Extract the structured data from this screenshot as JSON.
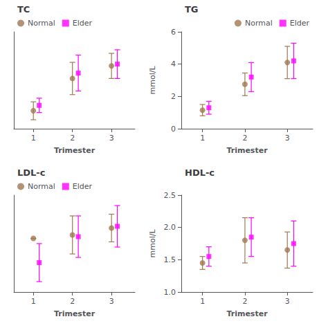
{
  "chart_data": [
    {
      "type": "scatter",
      "title": "TC",
      "xlabel": "Trimester",
      "xlim": [
        0.5,
        3.6
      ],
      "xticks": [
        1,
        2,
        3
      ],
      "ylim": [
        2.8,
        5.5
      ],
      "tick_labels": "x",
      "legend": "upper left",
      "series": [
        {
          "name": "Normal",
          "color": "#A07850",
          "marker": "circle",
          "x": [
            1.0,
            2.0,
            3.0
          ],
          "values": [
            3.3,
            4.2,
            4.55
          ],
          "error_lo": [
            0.25,
            0.45,
            0.35
          ],
          "error_hi": [
            0.25,
            0.45,
            0.35
          ]
        },
        {
          "name": "Elder",
          "color": "#FF00FF",
          "marker": "square",
          "x": [
            1.15,
            2.15,
            3.15
          ],
          "values": [
            3.45,
            4.35,
            4.6
          ],
          "error_lo": [
            0.2,
            0.5,
            0.4
          ],
          "error_hi": [
            0.2,
            0.5,
            0.4
          ]
        }
      ]
    },
    {
      "type": "scatter",
      "title": "TG",
      "xlabel": "Trimester",
      "ylabel": "mmol/L",
      "xlim": [
        0.5,
        3.6
      ],
      "xticks": [
        1,
        2,
        3
      ],
      "ylim": [
        0,
        6
      ],
      "yticks": [
        0,
        2,
        4,
        6
      ],
      "legend": "upper right",
      "series": [
        {
          "name": "Normal",
          "color": "#A07850",
          "marker": "circle",
          "x": [
            1.0,
            2.0,
            3.0
          ],
          "values": [
            1.15,
            2.75,
            4.1
          ],
          "error_lo": [
            0.35,
            0.7,
            1.0
          ],
          "error_hi": [
            0.35,
            0.7,
            1.0
          ]
        },
        {
          "name": "Elder",
          "color": "#FF00FF",
          "marker": "square",
          "x": [
            1.15,
            2.15,
            3.15
          ],
          "values": [
            1.3,
            3.2,
            4.2
          ],
          "error_lo": [
            0.4,
            0.9,
            1.1
          ],
          "error_hi": [
            0.4,
            0.9,
            1.1
          ]
        }
      ]
    },
    {
      "type": "scatter",
      "title": "LDL-c",
      "xlabel": "Trimester",
      "xlim": [
        0.5,
        3.6
      ],
      "xticks": [
        1,
        2,
        3
      ],
      "ylim": [
        1.0,
        3.8
      ],
      "tick_labels": "x",
      "legend": "upper left",
      "series": [
        {
          "name": "Normal",
          "color": "#A07850",
          "marker": "circle",
          "x": [
            1.0,
            2.0,
            3.0
          ],
          "values": [
            2.55,
            2.65,
            2.85
          ],
          "error_lo": [
            0.0,
            0.55,
            0.4
          ],
          "error_hi": [
            0.0,
            0.55,
            0.4
          ]
        },
        {
          "name": "Elder",
          "color": "#FF00FF",
          "marker": "square",
          "x": [
            1.15,
            2.15,
            3.15
          ],
          "values": [
            1.85,
            2.6,
            2.9
          ],
          "error_lo": [
            0.55,
            0.6,
            0.6
          ],
          "error_hi": [
            0.55,
            0.6,
            0.6
          ]
        }
      ]
    },
    {
      "type": "scatter",
      "title": "HDL-c",
      "xlabel": "Trimester",
      "ylabel": "mmol/L",
      "xlim": [
        0.5,
        3.6
      ],
      "xticks": [
        1,
        2,
        3
      ],
      "ylim": [
        1.0,
        2.5
      ],
      "yticks": [
        {
          "value": 1.0,
          "label": "1.0"
        },
        1.5,
        {
          "value": 2.0,
          "label": "2.0"
        },
        2.5
      ],
      "series": [
        {
          "name": "Normal",
          "color": "#A07850",
          "marker": "circle",
          "x": [
            1.0,
            2.0,
            3.0
          ],
          "values": [
            1.45,
            1.8,
            1.65
          ],
          "error_lo": [
            0.1,
            0.35,
            0.28
          ],
          "error_hi": [
            0.1,
            0.35,
            0.28
          ]
        },
        {
          "name": "Elder",
          "color": "#FF00FF",
          "marker": "square",
          "x": [
            1.15,
            2.15,
            3.15
          ],
          "values": [
            1.55,
            1.85,
            1.75
          ],
          "error_lo": [
            0.15,
            0.3,
            0.35
          ],
          "error_hi": [
            0.15,
            0.3,
            0.35
          ]
        }
      ]
    }
  ]
}
